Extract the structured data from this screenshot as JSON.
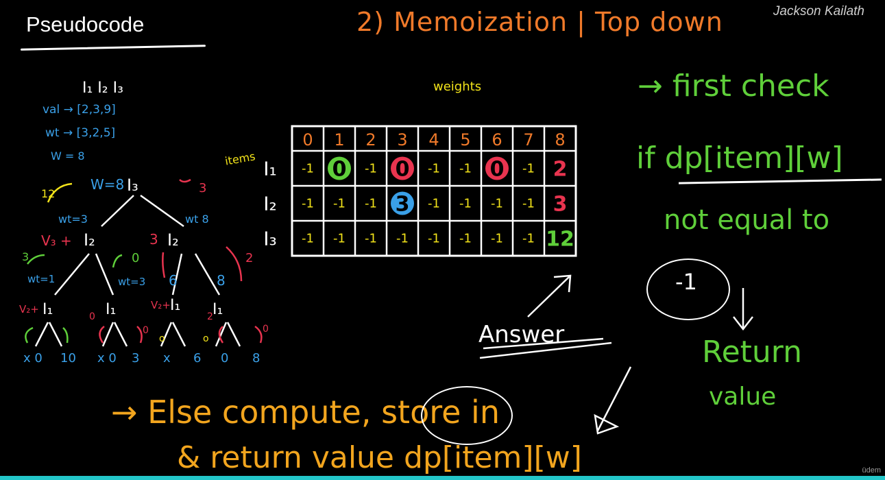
{
  "slide": {
    "title": "Pseudocode",
    "author": "Jackson Kailath",
    "heading": "2) Memoization | Top down",
    "udemy_mark": "üdem"
  },
  "colors": {
    "background": "#000000",
    "orange": "#f07a2a",
    "yellow": "#f2e31a",
    "green": "#5fcf3a",
    "blue": "#3aa0e8",
    "red": "#e8344f",
    "accent_bar": "#23c6c9"
  },
  "problem": {
    "items": "I₁ I₂ I₃",
    "val": "val → [2,3,9]",
    "wt": "wt → [3,2,5]",
    "capacity": "W = 8"
  },
  "tree": {
    "root": {
      "label": "W=8 I₃",
      "left_edge": "wt=3",
      "right_edge": "wt 8",
      "left_val": "12",
      "right_val": "3"
    },
    "level2": [
      {
        "label": "V₃ + I₂",
        "left_edge": "wt=1",
        "right_edge": "wt=3",
        "left_val": "3",
        "right_val": "0"
      },
      {
        "label": "3 I₂",
        "left_edge": "6",
        "right_edge": "8",
        "left_val": "",
        "right_val": "2"
      }
    ],
    "level3": [
      {
        "label": "V₂+ I₁",
        "leaves": [
          "x 0",
          "10"
        ]
      },
      {
        "label": "0 I₁",
        "leaves": [
          "x 0",
          "3"
        ]
      },
      {
        "label": "V₂+ I₁",
        "leaves": [
          "x",
          "6"
        ]
      },
      {
        "label": "2 I₁",
        "leaves": [
          "0",
          "8"
        ]
      }
    ]
  },
  "table": {
    "weights_label": "weights",
    "items_label": "items",
    "columns": [
      "0",
      "1",
      "2",
      "3",
      "4",
      "5",
      "6",
      "7",
      "8"
    ],
    "rows": [
      {
        "label": "I₁",
        "cells": [
          "-1",
          "0",
          "-1",
          "0",
          "-1",
          "-1",
          "0",
          "-1",
          "2"
        ]
      },
      {
        "label": "I₂",
        "cells": [
          "-1",
          "-1",
          "-1",
          "3",
          "-1",
          "-1",
          "-1",
          "-1",
          "3"
        ]
      },
      {
        "label": "I₃",
        "cells": [
          "-1",
          "-1",
          "-1",
          "-1",
          "-1",
          "-1",
          "-1",
          "-1",
          "12"
        ]
      }
    ]
  },
  "notes": {
    "first_check": "→ first check",
    "if_check": "if dp[item][w]",
    "not_equal": "not equal to",
    "minus_one": "-1",
    "return": "Return",
    "value": "value",
    "else_line": "→ Else compute, store in",
    "return_line": "& return value dp[item][w]",
    "answer": "Answer"
  }
}
